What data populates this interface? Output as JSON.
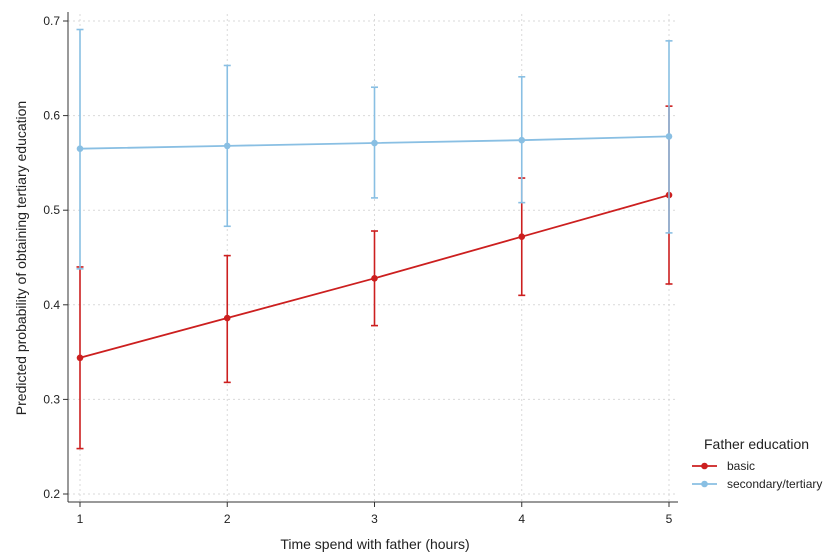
{
  "chart_data": {
    "type": "line",
    "title": "",
    "xlabel": "Time spend with father (hours)",
    "ylabel": "Predicted probability of obtaining tertiary education",
    "x": [
      1,
      2,
      3,
      4,
      5
    ],
    "xlim": [
      1,
      5
    ],
    "ylim": [
      0.2,
      0.7
    ],
    "xticks": [
      1,
      2,
      3,
      4,
      5
    ],
    "yticks": [
      0.2,
      0.3,
      0.4,
      0.5,
      0.6,
      0.7
    ],
    "grid": true,
    "legend": {
      "title": "Father education",
      "position": "bottom-right"
    },
    "series": [
      {
        "name": "basic",
        "color": "#cc1f1f",
        "values": [
          0.344,
          0.386,
          0.428,
          0.472,
          0.516
        ],
        "ci_low": [
          0.248,
          0.318,
          0.378,
          0.41,
          0.422
        ],
        "ci_high": [
          0.44,
          0.452,
          0.478,
          0.534,
          0.61
        ]
      },
      {
        "name": "secondary/tertiary",
        "color": "#89bfe3",
        "values": [
          0.565,
          0.568,
          0.571,
          0.574,
          0.578
        ],
        "ci_low": [
          0.438,
          0.483,
          0.513,
          0.508,
          0.476
        ],
        "ci_high": [
          0.691,
          0.653,
          0.63,
          0.641,
          0.679
        ]
      }
    ]
  }
}
